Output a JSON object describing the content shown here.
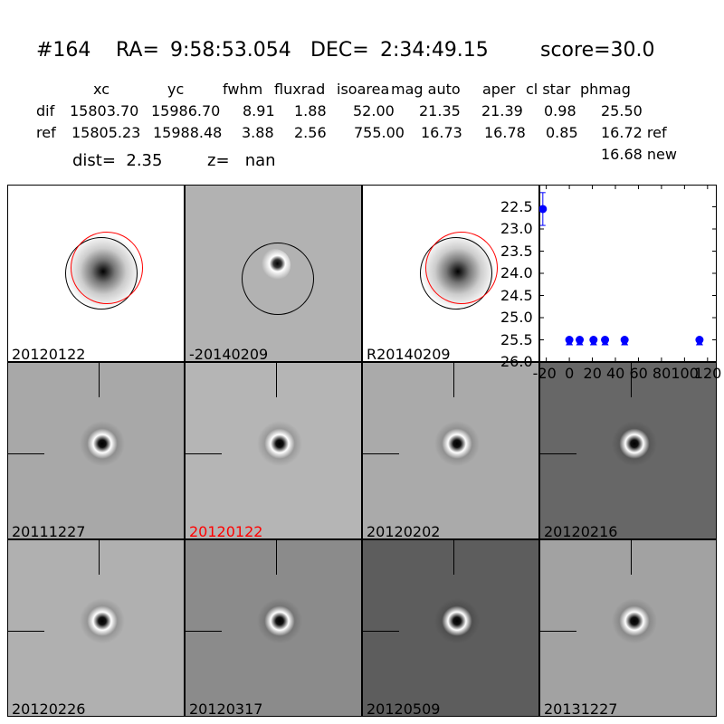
{
  "header": {
    "id": "#164",
    "ra_label": "RA=",
    "ra": "9:58:53.054",
    "dec_label": "DEC=",
    "dec": "2:34:49.15",
    "score": "score=30.0"
  },
  "table": {
    "columns": [
      "xc",
      "yc",
      "fwhm",
      "fluxrad",
      "isoarea",
      "mag auto",
      "aper",
      "cl star",
      "phmag"
    ],
    "rows": [
      {
        "name": "dif",
        "values": [
          "15803.70",
          "15986.70",
          "8.91",
          "1.88",
          "52.00",
          "21.35",
          "21.39",
          "0.98",
          "25.50"
        ]
      },
      {
        "name": "ref",
        "values": [
          "15805.23",
          "15988.48",
          "3.88",
          "2.56",
          "755.00",
          "16.73",
          "16.78",
          "0.85",
          "16.72 ref"
        ]
      }
    ],
    "phmag_new": "16.68 new",
    "dist": "dist=  2.35",
    "z": "z=   nan"
  },
  "panels": [
    {
      "label": "20120122",
      "kind": "ref"
    },
    {
      "label": "-20140209",
      "kind": "diff"
    },
    {
      "label": "R20140209",
      "kind": "ref"
    },
    {
      "label": "20111227",
      "kind": "epoch"
    },
    {
      "label": "20120122",
      "kind": "epoch",
      "highlight": "#ff0000"
    },
    {
      "label": "20120202",
      "kind": "epoch"
    },
    {
      "label": "20120216",
      "kind": "epoch"
    },
    {
      "label": "20120226",
      "kind": "epoch"
    },
    {
      "label": "20120317",
      "kind": "epoch"
    },
    {
      "label": "20120509",
      "kind": "epoch"
    },
    {
      "label": "20131227",
      "kind": "epoch"
    }
  ],
  "chart_data": {
    "type": "scatter",
    "xlim": [
      -26,
      128
    ],
    "ylim": [
      26.0,
      22.0
    ],
    "xticks": [
      "-20",
      "0",
      "20",
      "40",
      "60",
      "80",
      "100",
      "120"
    ],
    "yticks": [
      "22.5",
      "23.0",
      "23.5",
      "24.0",
      "24.5",
      "25.0",
      "25.5",
      "26.0"
    ],
    "color": "#0000ff",
    "points": [
      {
        "x": -23,
        "y": 22.55,
        "err": 0.37
      },
      {
        "x": 0,
        "y": 25.5,
        "limit": true
      },
      {
        "x": 9,
        "y": 25.5,
        "limit": true
      },
      {
        "x": 21,
        "y": 25.5,
        "limit": true
      },
      {
        "x": 31,
        "y": 25.5,
        "limit": true
      },
      {
        "x": 48,
        "y": 25.5,
        "limit": true
      },
      {
        "x": 113,
        "y": 25.5,
        "limit": true
      }
    ]
  }
}
